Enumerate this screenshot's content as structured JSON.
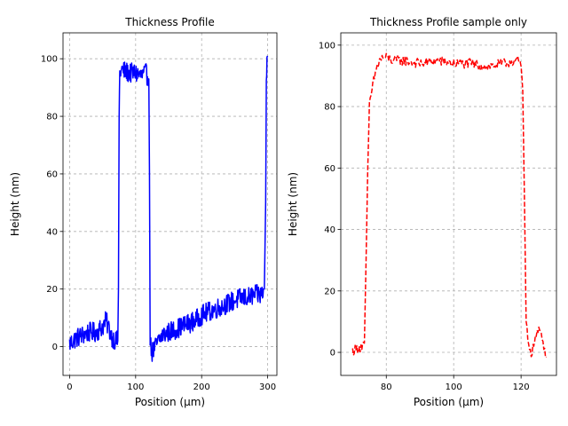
{
  "chart_data": [
    {
      "type": "line",
      "title": "Thickness Profile",
      "xlabel": "Position (µm)",
      "ylabel": "Height (nm)",
      "xlim": [
        -10,
        314
      ],
      "ylim": [
        -10,
        109
      ],
      "xticks": [
        0,
        100,
        200,
        300
      ],
      "yticks": [
        0,
        20,
        40,
        60,
        80,
        100
      ],
      "grid": true,
      "series": [
        {
          "color": "#0000ff",
          "style": "solid",
          "noise": 3.5,
          "x": [
            0,
            10,
            20,
            30,
            40,
            50,
            55,
            60,
            65,
            70,
            73,
            74,
            75,
            76,
            78,
            80,
            90,
            100,
            110,
            115,
            118,
            120,
            121,
            122,
            123,
            125,
            130,
            140,
            150,
            160,
            170,
            180,
            190,
            200,
            210,
            220,
            230,
            240,
            250,
            260,
            270,
            280,
            290,
            295,
            297,
            298,
            299,
            300
          ],
          "y": [
            1,
            3,
            4,
            5,
            5,
            7,
            9,
            6,
            3,
            2,
            2,
            20,
            80,
            95,
            96,
            96,
            95,
            95,
            94,
            95,
            94,
            93,
            60,
            4,
            0,
            -2,
            0,
            4,
            5,
            6,
            7,
            8,
            9,
            11,
            12,
            13,
            14,
            15,
            16,
            17,
            17,
            18,
            18,
            20,
            50,
            90,
            100,
            101
          ]
        }
      ]
    },
    {
      "type": "line",
      "title": "Thickness Profile sample only",
      "xlabel": "Position (µm)",
      "ylabel": "Height (nm)",
      "xlim": [
        66.5,
        130.5
      ],
      "ylim": [
        -7.5,
        104
      ],
      "xticks": [
        80,
        100,
        120
      ],
      "yticks": [
        0,
        20,
        40,
        60,
        80,
        100
      ],
      "grid": true,
      "series": [
        {
          "color": "#ff0000",
          "style": "dashed",
          "noise": 1.6,
          "x": [
            70,
            71,
            72,
            73,
            73.5,
            74,
            74.5,
            75,
            76,
            77,
            78,
            79,
            80,
            82,
            85,
            90,
            95,
            100,
            105,
            110,
            115,
            118,
            119,
            120,
            120.5,
            121,
            121.5,
            122,
            122.5,
            123,
            123.5,
            124,
            125,
            126,
            127,
            127.5
          ],
          "y": [
            0.5,
            1,
            1.5,
            2,
            3,
            30,
            60,
            80,
            87,
            92,
            95,
            96,
            96,
            95,
            95,
            94,
            95,
            94,
            94,
            93,
            94,
            95,
            95,
            93,
            85,
            50,
            10,
            4,
            2,
            0,
            1,
            4,
            7,
            6,
            1,
            -1.5
          ]
        }
      ]
    }
  ]
}
